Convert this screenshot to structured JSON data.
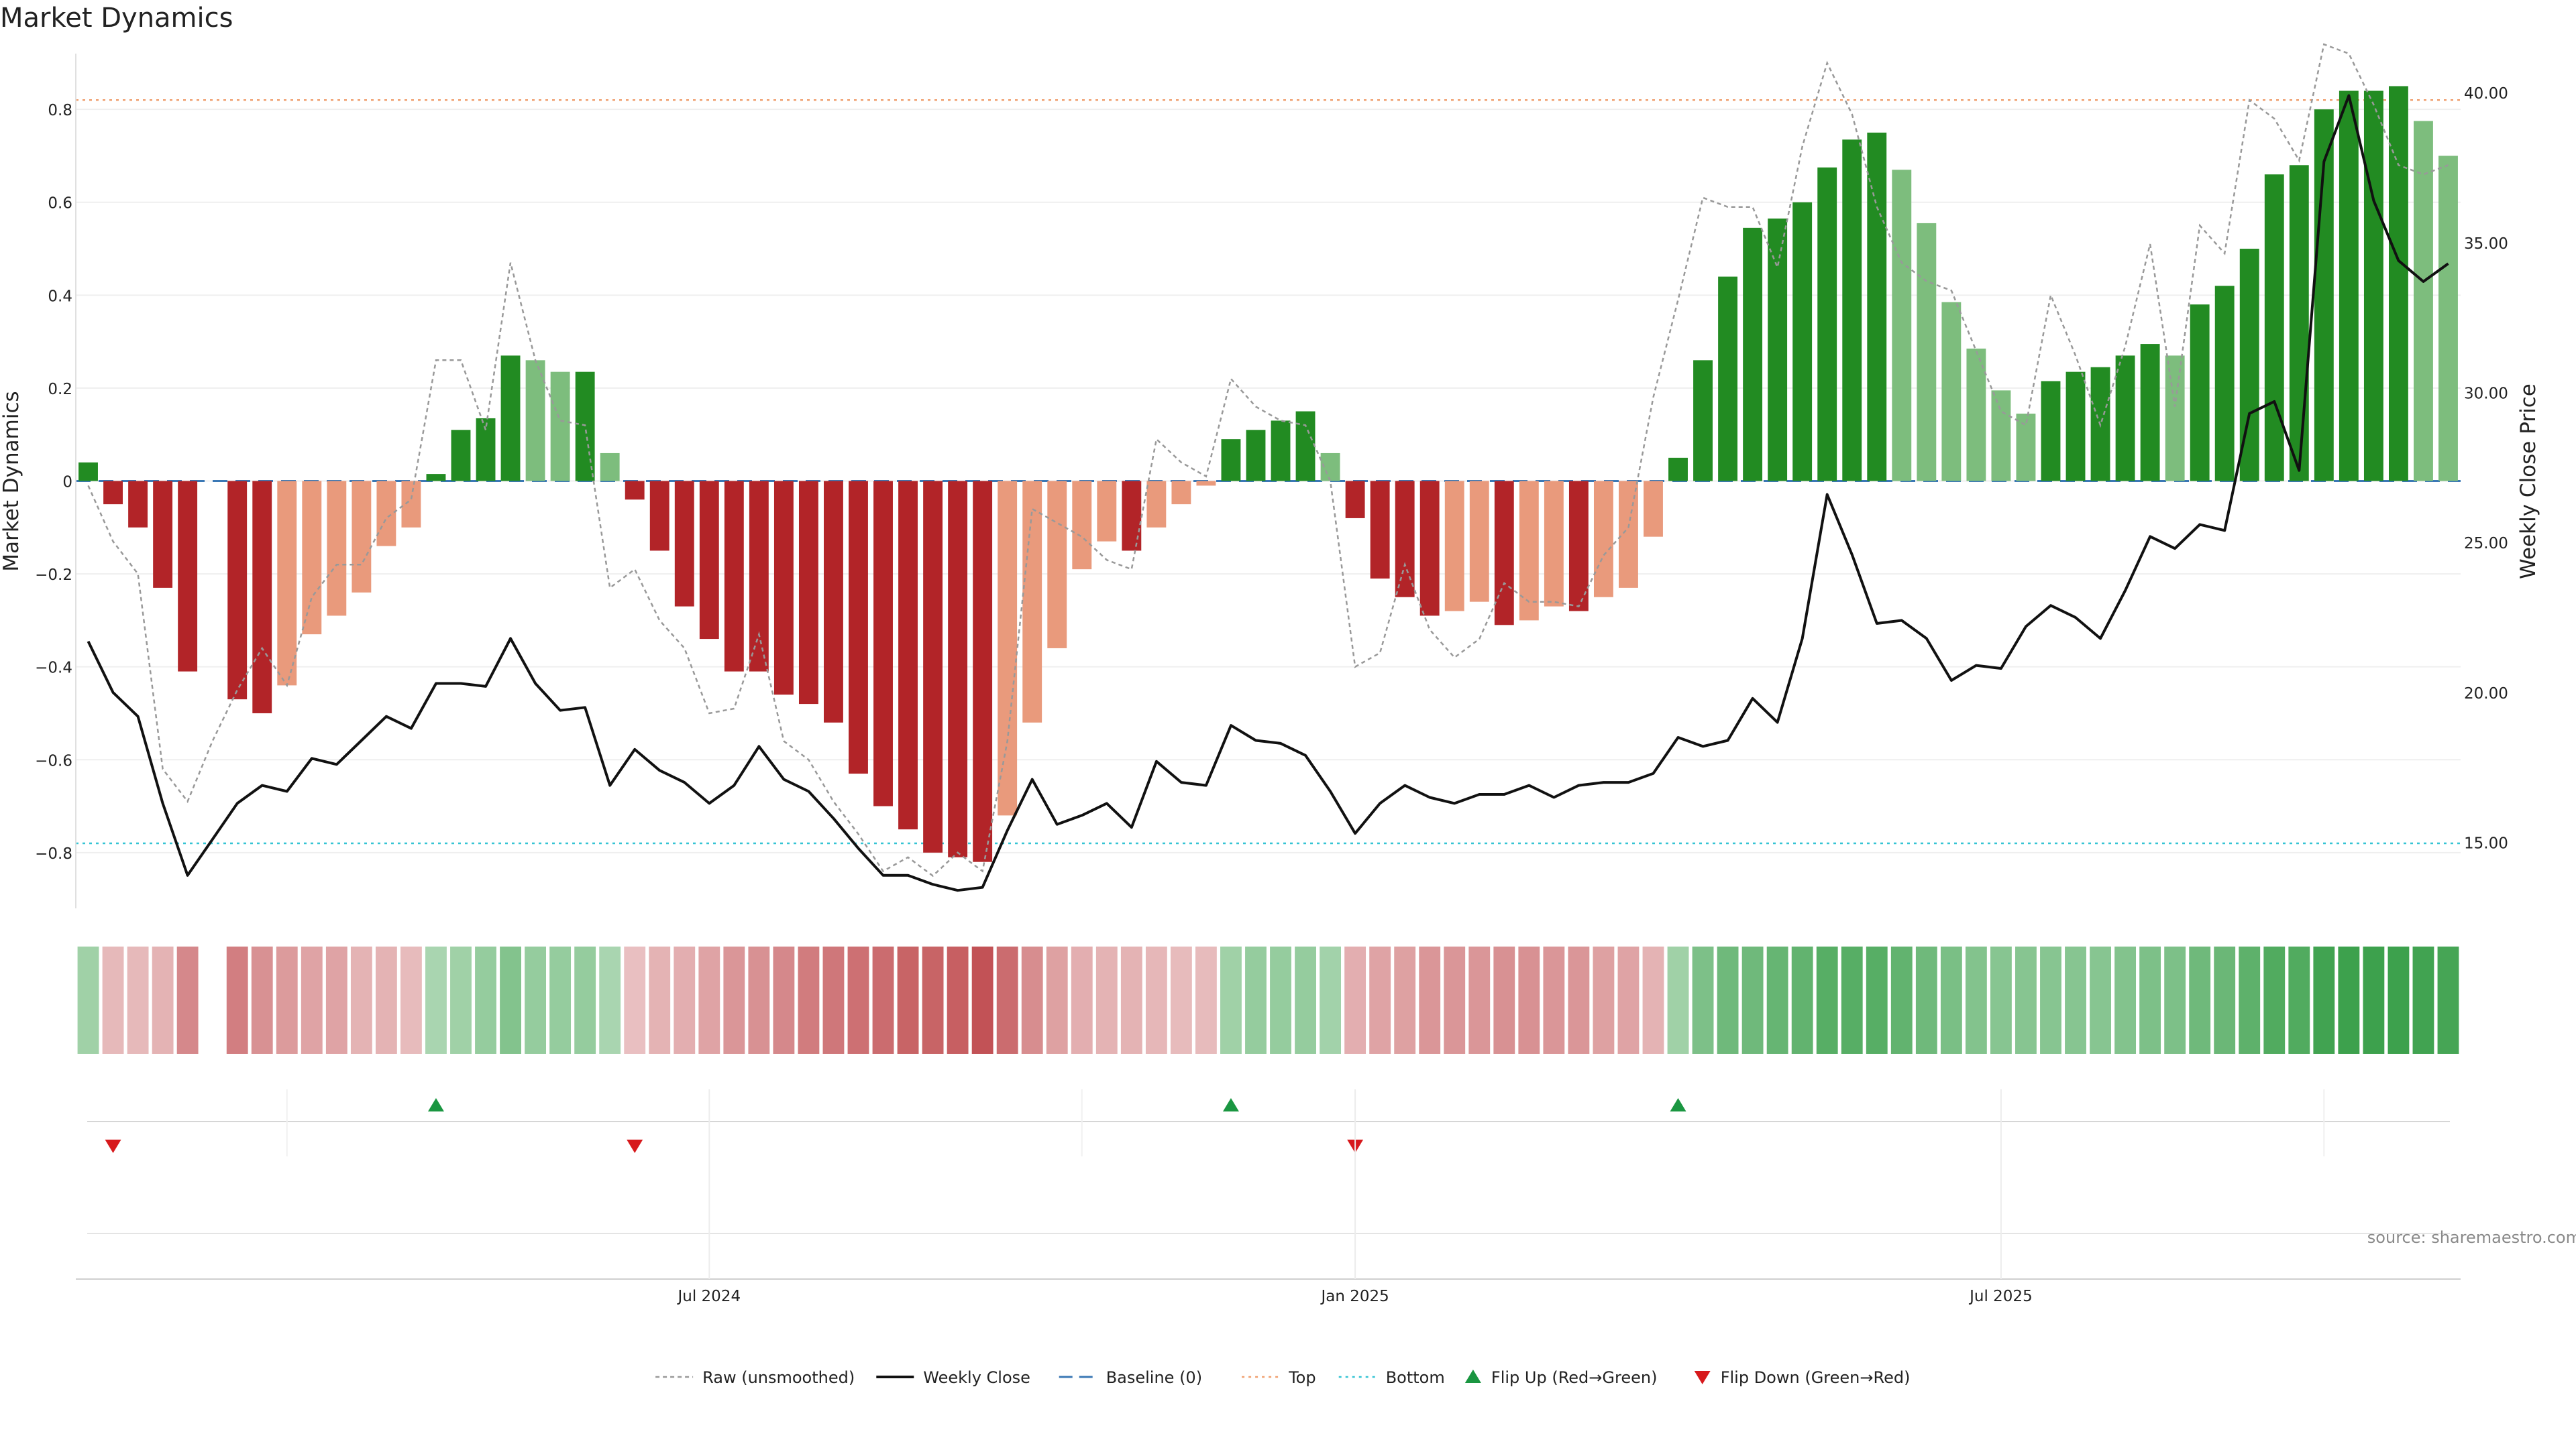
{
  "chart_data": {
    "type": "bar",
    "title": "Market Dynamics",
    "ylabel_left": "Market Dynamics",
    "ylabel_right": "Weekly Close Price",
    "ylim_left": [
      -0.92,
      0.92
    ],
    "ylim_right": [
      12.8,
      41.3
    ],
    "left_ticks": [
      0.8,
      0.6,
      0.4,
      0.2,
      0,
      -0.2,
      -0.4,
      -0.6,
      -0.8
    ],
    "left_tick_labels": [
      "0.8",
      "0.6",
      "0.4",
      "0.2",
      "0",
      "−0.2",
      "−0.4",
      "−0.6",
      "−0.8"
    ],
    "right_ticks": [
      40,
      35,
      30,
      25,
      20,
      15
    ],
    "right_tick_labels": [
      "40.00",
      "35.00",
      "30.00",
      "25.00",
      "20.00",
      "15.00"
    ],
    "x_tick_indices": [
      25,
      51,
      77
    ],
    "x_tick_labels": [
      "Jul 2024",
      "Jan 2025",
      "Jul 2025"
    ],
    "top_level": 0.82,
    "bottom_level": -0.78,
    "baseline": 0,
    "colors": {
      "strong_red": "#b22428",
      "light_red": "#e99a7c",
      "strong_green": "#228b22",
      "light_green": "#7dbd7d",
      "top_line": "#f0a070",
      "bottom_line": "#35c4d4",
      "baseline": "#3b78b5",
      "raw": "#999999",
      "close": "#111111",
      "flip_up": "#1a9641",
      "flip_down": "#d7191c"
    },
    "bar_values": [
      0.04,
      -0.05,
      -0.1,
      -0.23,
      -0.41,
      0,
      -0.47,
      -0.5,
      -0.44,
      -0.33,
      -0.29,
      -0.24,
      -0.14,
      -0.1,
      0.015,
      0.11,
      0.135,
      0.27,
      0.26,
      0.235,
      0.235,
      0.06,
      -0.04,
      -0.15,
      -0.27,
      -0.34,
      -0.41,
      -0.41,
      -0.46,
      -0.48,
      -0.52,
      -0.63,
      -0.7,
      -0.75,
      -0.8,
      -0.81,
      -0.82,
      -0.72,
      -0.52,
      -0.36,
      -0.19,
      -0.13,
      -0.15,
      -0.1,
      -0.05,
      -0.01,
      0.09,
      0.11,
      0.13,
      0.15,
      0.06,
      -0.08,
      -0.21,
      -0.25,
      -0.29,
      -0.28,
      -0.26,
      -0.31,
      -0.3,
      -0.27,
      -0.28,
      -0.25,
      -0.23,
      -0.12,
      0.05,
      0.26,
      0.44,
      0.545,
      0.565,
      0.6,
      0.675,
      0.735,
      0.75,
      0.67,
      0.555,
      0.385,
      0.285,
      0.195,
      0.145,
      0.215,
      0.235,
      0.245,
      0.27,
      0.295,
      0.27,
      0.38,
      0.42,
      0.5,
      0.66,
      0.68,
      0.8,
      0.84,
      0.84,
      0.85,
      0.775,
      0.7
    ],
    "bar_tone": [
      "strong",
      "strong",
      "strong",
      "strong",
      "strong",
      "none",
      "strong",
      "strong",
      "light",
      "light",
      "light",
      "light",
      "light",
      "light",
      "strong",
      "strong",
      "strong",
      "strong",
      "light",
      "light",
      "strong",
      "light",
      "strong",
      "strong",
      "strong",
      "strong",
      "strong",
      "strong",
      "strong",
      "strong",
      "strong",
      "strong",
      "strong",
      "strong",
      "strong",
      "strong",
      "strong",
      "light",
      "light",
      "light",
      "light",
      "light",
      "strong",
      "light",
      "light",
      "light",
      "strong",
      "strong",
      "strong",
      "strong",
      "light",
      "strong",
      "strong",
      "strong",
      "strong",
      "light",
      "light",
      "strong",
      "light",
      "light",
      "strong",
      "light",
      "light",
      "light",
      "strong",
      "strong",
      "strong",
      "strong",
      "strong",
      "strong",
      "strong",
      "strong",
      "strong",
      "light",
      "light",
      "light",
      "light",
      "light",
      "light",
      "strong",
      "strong",
      "strong",
      "strong",
      "strong",
      "light",
      "strong",
      "strong",
      "strong",
      "strong",
      "strong",
      "strong",
      "strong",
      "strong",
      "strong",
      "light",
      "light"
    ],
    "raw_values": [
      -0.01,
      -0.13,
      -0.2,
      -0.62,
      -0.69,
      -0.56,
      -0.45,
      -0.36,
      -0.44,
      -0.25,
      -0.18,
      -0.18,
      -0.08,
      -0.04,
      0.26,
      0.26,
      0.11,
      0.47,
      0.26,
      0.13,
      0.12,
      -0.23,
      -0.19,
      -0.3,
      -0.36,
      -0.5,
      -0.49,
      -0.33,
      -0.56,
      -0.6,
      -0.69,
      -0.76,
      -0.84,
      -0.81,
      -0.85,
      -0.8,
      -0.84,
      -0.56,
      -0.06,
      -0.09,
      -0.12,
      -0.17,
      -0.19,
      0.09,
      0.04,
      0.01,
      0.22,
      0.16,
      0.13,
      0.12,
      0.0,
      -0.4,
      -0.37,
      -0.18,
      -0.32,
      -0.38,
      -0.34,
      -0.22,
      -0.26,
      -0.26,
      -0.27,
      -0.16,
      -0.1,
      0.18,
      0.39,
      0.61,
      0.59,
      0.59,
      0.46,
      0.72,
      0.9,
      0.79,
      0.59,
      0.47,
      0.43,
      0.41,
      0.28,
      0.15,
      0.12,
      0.4,
      0.27,
      0.12,
      0.29,
      0.51,
      0.16,
      0.55,
      0.49,
      0.82,
      0.78,
      0.69,
      0.94,
      0.92,
      0.81,
      0.68,
      0.66,
      0.68
    ],
    "weekly_close": [
      21.7,
      20.0,
      19.2,
      16.3,
      13.9,
      15.1,
      16.3,
      16.9,
      16.7,
      17.8,
      17.6,
      18.4,
      19.2,
      18.8,
      20.3,
      20.3,
      20.2,
      21.8,
      20.3,
      19.4,
      19.5,
      16.9,
      18.1,
      17.4,
      17.0,
      16.3,
      16.9,
      18.2,
      17.1,
      16.7,
      15.8,
      14.8,
      13.9,
      13.9,
      13.6,
      13.4,
      13.5,
      15.4,
      17.1,
      15.6,
      15.9,
      16.3,
      15.5,
      17.7,
      17.0,
      16.9,
      18.9,
      18.4,
      18.3,
      17.9,
      16.7,
      15.3,
      16.3,
      16.9,
      16.5,
      16.3,
      16.6,
      16.6,
      16.9,
      16.5,
      16.9,
      17.0,
      17.0,
      17.3,
      18.5,
      18.2,
      18.4,
      19.8,
      19.0,
      21.8,
      26.6,
      24.6,
      22.3,
      22.4,
      21.8,
      20.4,
      20.9,
      20.8,
      22.2,
      22.9,
      22.5,
      21.8,
      23.4,
      25.2,
      24.8,
      25.6,
      25.4,
      29.3,
      29.7,
      27.4,
      37.7,
      39.9,
      36.4,
      34.4,
      33.7,
      34.3
    ],
    "flips_up": [
      14,
      46,
      64
    ],
    "flips_down": [
      1,
      22,
      51
    ],
    "heat_values": [
      0.3,
      -0.17,
      -0.17,
      -0.2,
      -0.42,
      0,
      -0.48,
      -0.38,
      -0.33,
      -0.28,
      -0.28,
      -0.2,
      -0.2,
      -0.15,
      0.25,
      0.3,
      0.35,
      0.45,
      0.35,
      0.35,
      0.35,
      0.25,
      -0.13,
      -0.2,
      -0.22,
      -0.28,
      -0.35,
      -0.38,
      -0.42,
      -0.5,
      -0.52,
      -0.55,
      -0.58,
      -0.62,
      -0.62,
      -0.65,
      -0.72,
      -0.58,
      -0.4,
      -0.3,
      -0.22,
      -0.2,
      -0.2,
      -0.18,
      -0.15,
      -0.15,
      0.3,
      0.35,
      0.35,
      0.35,
      0.28,
      -0.22,
      -0.28,
      -0.3,
      -0.35,
      -0.35,
      -0.35,
      -0.38,
      -0.38,
      -0.35,
      -0.35,
      -0.3,
      -0.28,
      -0.2,
      0.3,
      0.48,
      0.55,
      0.55,
      0.6,
      0.62,
      0.68,
      0.68,
      0.68,
      0.62,
      0.55,
      0.5,
      0.45,
      0.42,
      0.42,
      0.42,
      0.42,
      0.42,
      0.45,
      0.48,
      0.48,
      0.55,
      0.58,
      0.65,
      0.72,
      0.72,
      0.8,
      0.82,
      0.82,
      0.82,
      0.8,
      0.78
    ],
    "legend": [
      "Raw (unsmoothed)",
      "Weekly Close",
      "Baseline (0)",
      "Top",
      "Bottom",
      "Flip Up (Red→Green)",
      "Flip Down (Green→Red)"
    ],
    "source": "source: sharemaestro.com"
  }
}
